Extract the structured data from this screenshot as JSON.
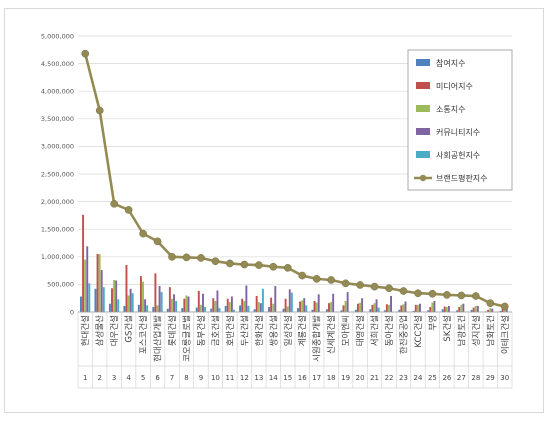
{
  "chart_data": {
    "type": "bar",
    "ylim": [
      0,
      5000000
    ],
    "y_ticks": [
      "0",
      "500,000",
      "1,000,000",
      "1,500,000",
      "2,000,000",
      "2,500,000",
      "3,000,000",
      "3,500,000",
      "4,000,000",
      "4,500,000",
      "5,000,000"
    ],
    "grid": true,
    "legend_position": "top-right",
    "categories": [
      "현대건설",
      "삼성물산",
      "대우건설",
      "GS건설",
      "포스코건설",
      "현대산업개발",
      "롯데건설",
      "코오롱글로벌",
      "동부건설",
      "금호건설",
      "호반건설",
      "두산건설",
      "한화건설",
      "쌍용건설",
      "일성건설",
      "계룡건설",
      "시원종합개발",
      "신세계건설",
      "모아엔씨",
      "태영건설",
      "서희건설",
      "동아건설",
      "한진중공업",
      "KCC건설",
      "부영",
      "SK건설",
      "남광토건",
      "성지건설",
      "남화토건",
      "이테크건설"
    ],
    "ranks": [
      "1",
      "2",
      "3",
      "4",
      "5",
      "6",
      "7",
      "8",
      "9",
      "10",
      "11",
      "12",
      "13",
      "14",
      "15",
      "16",
      "17",
      "18",
      "19",
      "20",
      "21",
      "22",
      "23",
      "24",
      "25",
      "26",
      "27",
      "28",
      "29",
      "30"
    ],
    "series": [
      {
        "name": "참여지수",
        "color": "#4f81bd",
        "values": [
          280000,
          420000,
          150000,
          110000,
          130000,
          90000,
          60000,
          70000,
          80000,
          60000,
          110000,
          120000,
          50000,
          90000,
          60000,
          70000,
          40000,
          50000,
          30000,
          40000,
          50000,
          30000,
          40000,
          20000,
          30000,
          50000,
          30000,
          40000,
          10000,
          20000
        ]
      },
      {
        "name": "미디어지수",
        "color": "#c0504d",
        "values": [
          1760000,
          1050000,
          430000,
          850000,
          650000,
          700000,
          450000,
          240000,
          380000,
          250000,
          240000,
          240000,
          290000,
          260000,
          240000,
          190000,
          200000,
          160000,
          120000,
          150000,
          130000,
          140000,
          120000,
          130000,
          90000,
          100000,
          90000,
          80000,
          40000,
          60000
        ]
      },
      {
        "name": "소통지수",
        "color": "#9bbb59",
        "values": [
          950000,
          1050000,
          580000,
          300000,
          550000,
          120000,
          240000,
          300000,
          130000,
          200000,
          180000,
          200000,
          180000,
          150000,
          100000,
          210000,
          170000,
          180000,
          200000,
          170000,
          160000,
          130000,
          140000,
          130000,
          170000,
          90000,
          130000,
          110000,
          70000,
          50000
        ]
      },
      {
        "name": "커뮤니티지수",
        "color": "#8064a2",
        "values": [
          1190000,
          760000,
          570000,
          420000,
          230000,
          470000,
          320000,
          280000,
          330000,
          390000,
          280000,
          480000,
          160000,
          470000,
          410000,
          250000,
          320000,
          330000,
          360000,
          250000,
          230000,
          290000,
          190000,
          150000,
          200000,
          110000,
          150000,
          110000,
          60000,
          120000
        ]
      },
      {
        "name": "사회공헌지수",
        "color": "#4bacc6",
        "values": [
          520000,
          450000,
          230000,
          340000,
          120000,
          360000,
          200000,
          0,
          90000,
          70000,
          40000,
          110000,
          420000,
          0,
          350000,
          120000,
          0,
          0,
          0,
          0,
          80000,
          0,
          0,
          0,
          0,
          0,
          0,
          0,
          0,
          0
        ]
      }
    ],
    "line_series": {
      "name": "브랜드평판지수",
      "color": "#948a54",
      "values": [
        4680000,
        3650000,
        1960000,
        1850000,
        1420000,
        1280000,
        1000000,
        990000,
        980000,
        920000,
        880000,
        860000,
        850000,
        820000,
        800000,
        660000,
        600000,
        580000,
        520000,
        490000,
        460000,
        430000,
        380000,
        340000,
        330000,
        310000,
        300000,
        290000,
        160000,
        100000
      ]
    }
  }
}
